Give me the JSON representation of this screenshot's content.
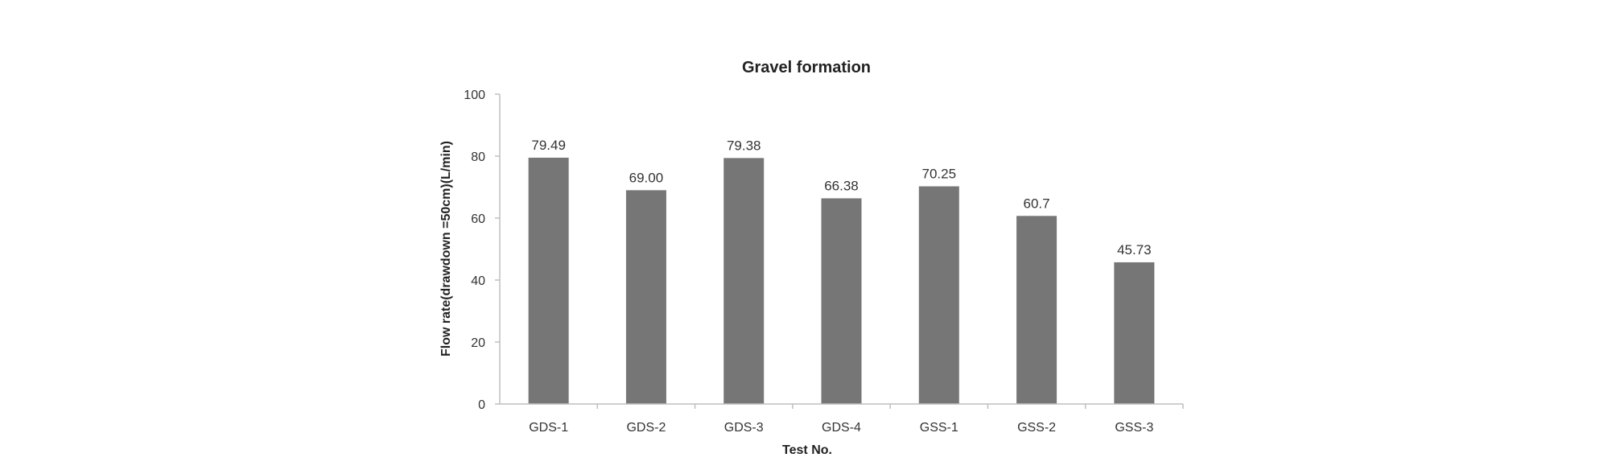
{
  "chart_data": {
    "type": "bar",
    "title": "Gravel formation",
    "xlabel": "Test No.",
    "ylabel": "Flow rate(drawdown =50cm)(L/min)",
    "categories": [
      "GDS-1",
      "GDS-2",
      "GDS-3",
      "GDS-4",
      "GSS-1",
      "GSS-2",
      "GSS-3"
    ],
    "values": [
      79.49,
      69.0,
      79.38,
      66.38,
      70.25,
      60.7,
      45.73
    ],
    "value_labels": [
      "79.49",
      "69.00",
      "79.38",
      "66.38",
      "70.25",
      "60.7",
      "45.73"
    ],
    "ylim": [
      0,
      100
    ],
    "yticks": [
      0,
      20,
      40,
      60,
      80,
      100
    ],
    "grid": false,
    "legend": "none",
    "bar_color": "#767676"
  }
}
